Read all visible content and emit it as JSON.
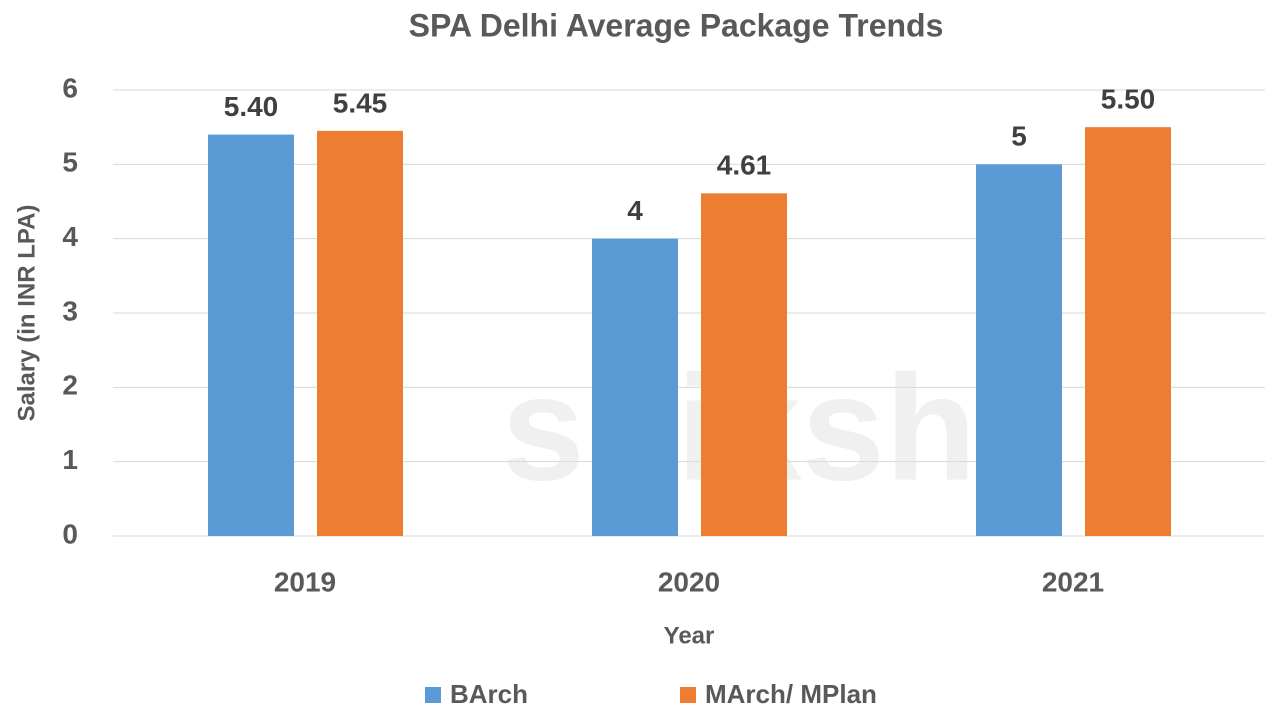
{
  "chart_data": {
    "type": "bar",
    "title": "SPA Delhi Average Package Trends",
    "x_label": "Year",
    "y_label": "Salary (in INR LPA)",
    "watermark": "shiksha",
    "categories": [
      "2019",
      "2020",
      "2021"
    ],
    "series": [
      {
        "name": "BArch",
        "color": "#5b9bd5",
        "values": [
          5.4,
          4,
          5
        ],
        "value_labels": [
          "5.40",
          "4",
          "5"
        ]
      },
      {
        "name": "MArch/ MPlan",
        "color": "#ed7d31",
        "values": [
          5.45,
          4.61,
          5.5
        ],
        "value_labels": [
          "5.45",
          "4.61",
          "5.50"
        ]
      }
    ],
    "ylim": [
      0,
      6
    ],
    "yticks": [
      0,
      1,
      2,
      3,
      4,
      5,
      6
    ],
    "grid": true,
    "legend": "bottom"
  }
}
